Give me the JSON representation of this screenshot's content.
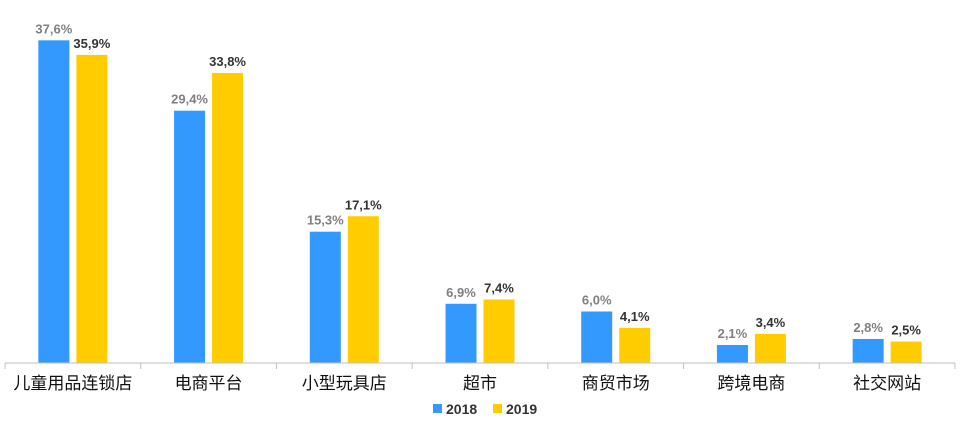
{
  "chart_data": {
    "type": "bar",
    "categories": [
      "儿童用品连锁店",
      "电商平台",
      "小型玩具店",
      "超市",
      "商贸市场",
      "跨境电商",
      "社交网站"
    ],
    "series": [
      {
        "name": "2018",
        "values": [
          37.6,
          29.4,
          15.3,
          6.9,
          6.0,
          2.1,
          2.8
        ],
        "labels": [
          "37,6%",
          "29,4%",
          "15,3%",
          "6,9%",
          "6,0%",
          "2,1%",
          "2,8%"
        ],
        "color": "#3399ff",
        "label_color": "#808080"
      },
      {
        "name": "2019",
        "values": [
          35.9,
          33.8,
          17.1,
          7.4,
          4.1,
          3.4,
          2.5
        ],
        "labels": [
          "35,9%",
          "33,8%",
          "17,1%",
          "7,4%",
          "4,1%",
          "3,4%",
          "2,5%"
        ],
        "color": "#ffcc00",
        "label_color": "#333333"
      }
    ],
    "ylim": [
      0,
      40
    ],
    "grid": false,
    "legend": "bottom-center"
  }
}
